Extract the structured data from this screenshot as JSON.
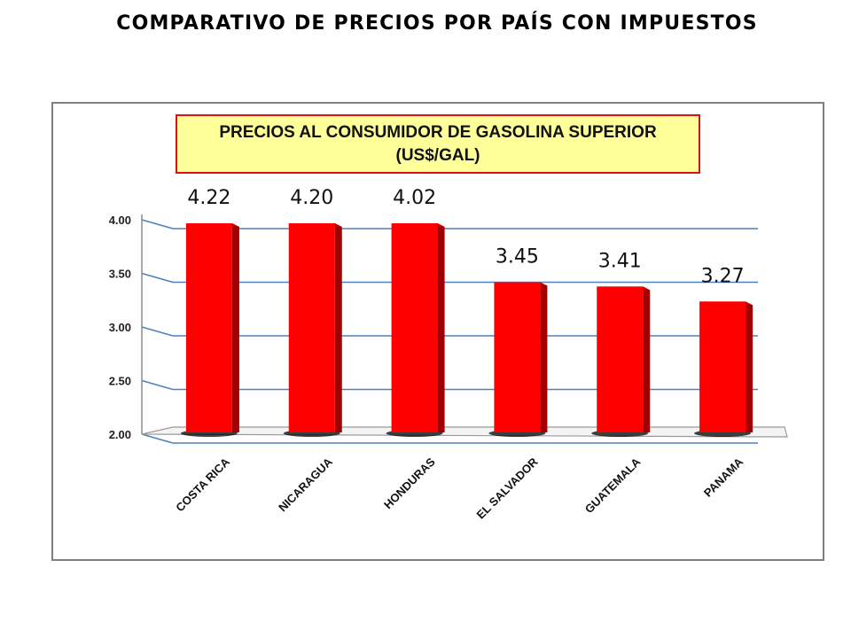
{
  "page": {
    "title": "COMPARATIVO DE PRECIOS POR PAÍS CON IMPUESTOS"
  },
  "colors": {
    "bar": "#ff0000",
    "bar_side": "#a00000",
    "grid": "#4f81bd",
    "title_box_fill": "#ffff99",
    "title_box_border": "#e01010"
  },
  "chart_data": {
    "type": "bar",
    "title_lines": [
      "PRECIOS AL CONSUMIDOR DE GASOLINA SUPERIOR",
      "(US$/GAL)"
    ],
    "categories": [
      "COSTA RICA",
      "NICARAGUA",
      "HONDURAS",
      "EL SALVADOR",
      "GUATEMALA",
      "PANAMA"
    ],
    "values": [
      4.22,
      4.2,
      4.02,
      3.45,
      3.41,
      3.27
    ],
    "data_labels": [
      "4.22",
      "4.20",
      "4.02",
      "3.45",
      "3.41",
      "3.27"
    ],
    "y_ticks": [
      "2.00",
      "2.50",
      "3.00",
      "3.50",
      "4.00"
    ],
    "ylim": [
      2.0,
      4.0
    ],
    "grid": true,
    "legend": false,
    "style": "3d-clustered-column"
  }
}
